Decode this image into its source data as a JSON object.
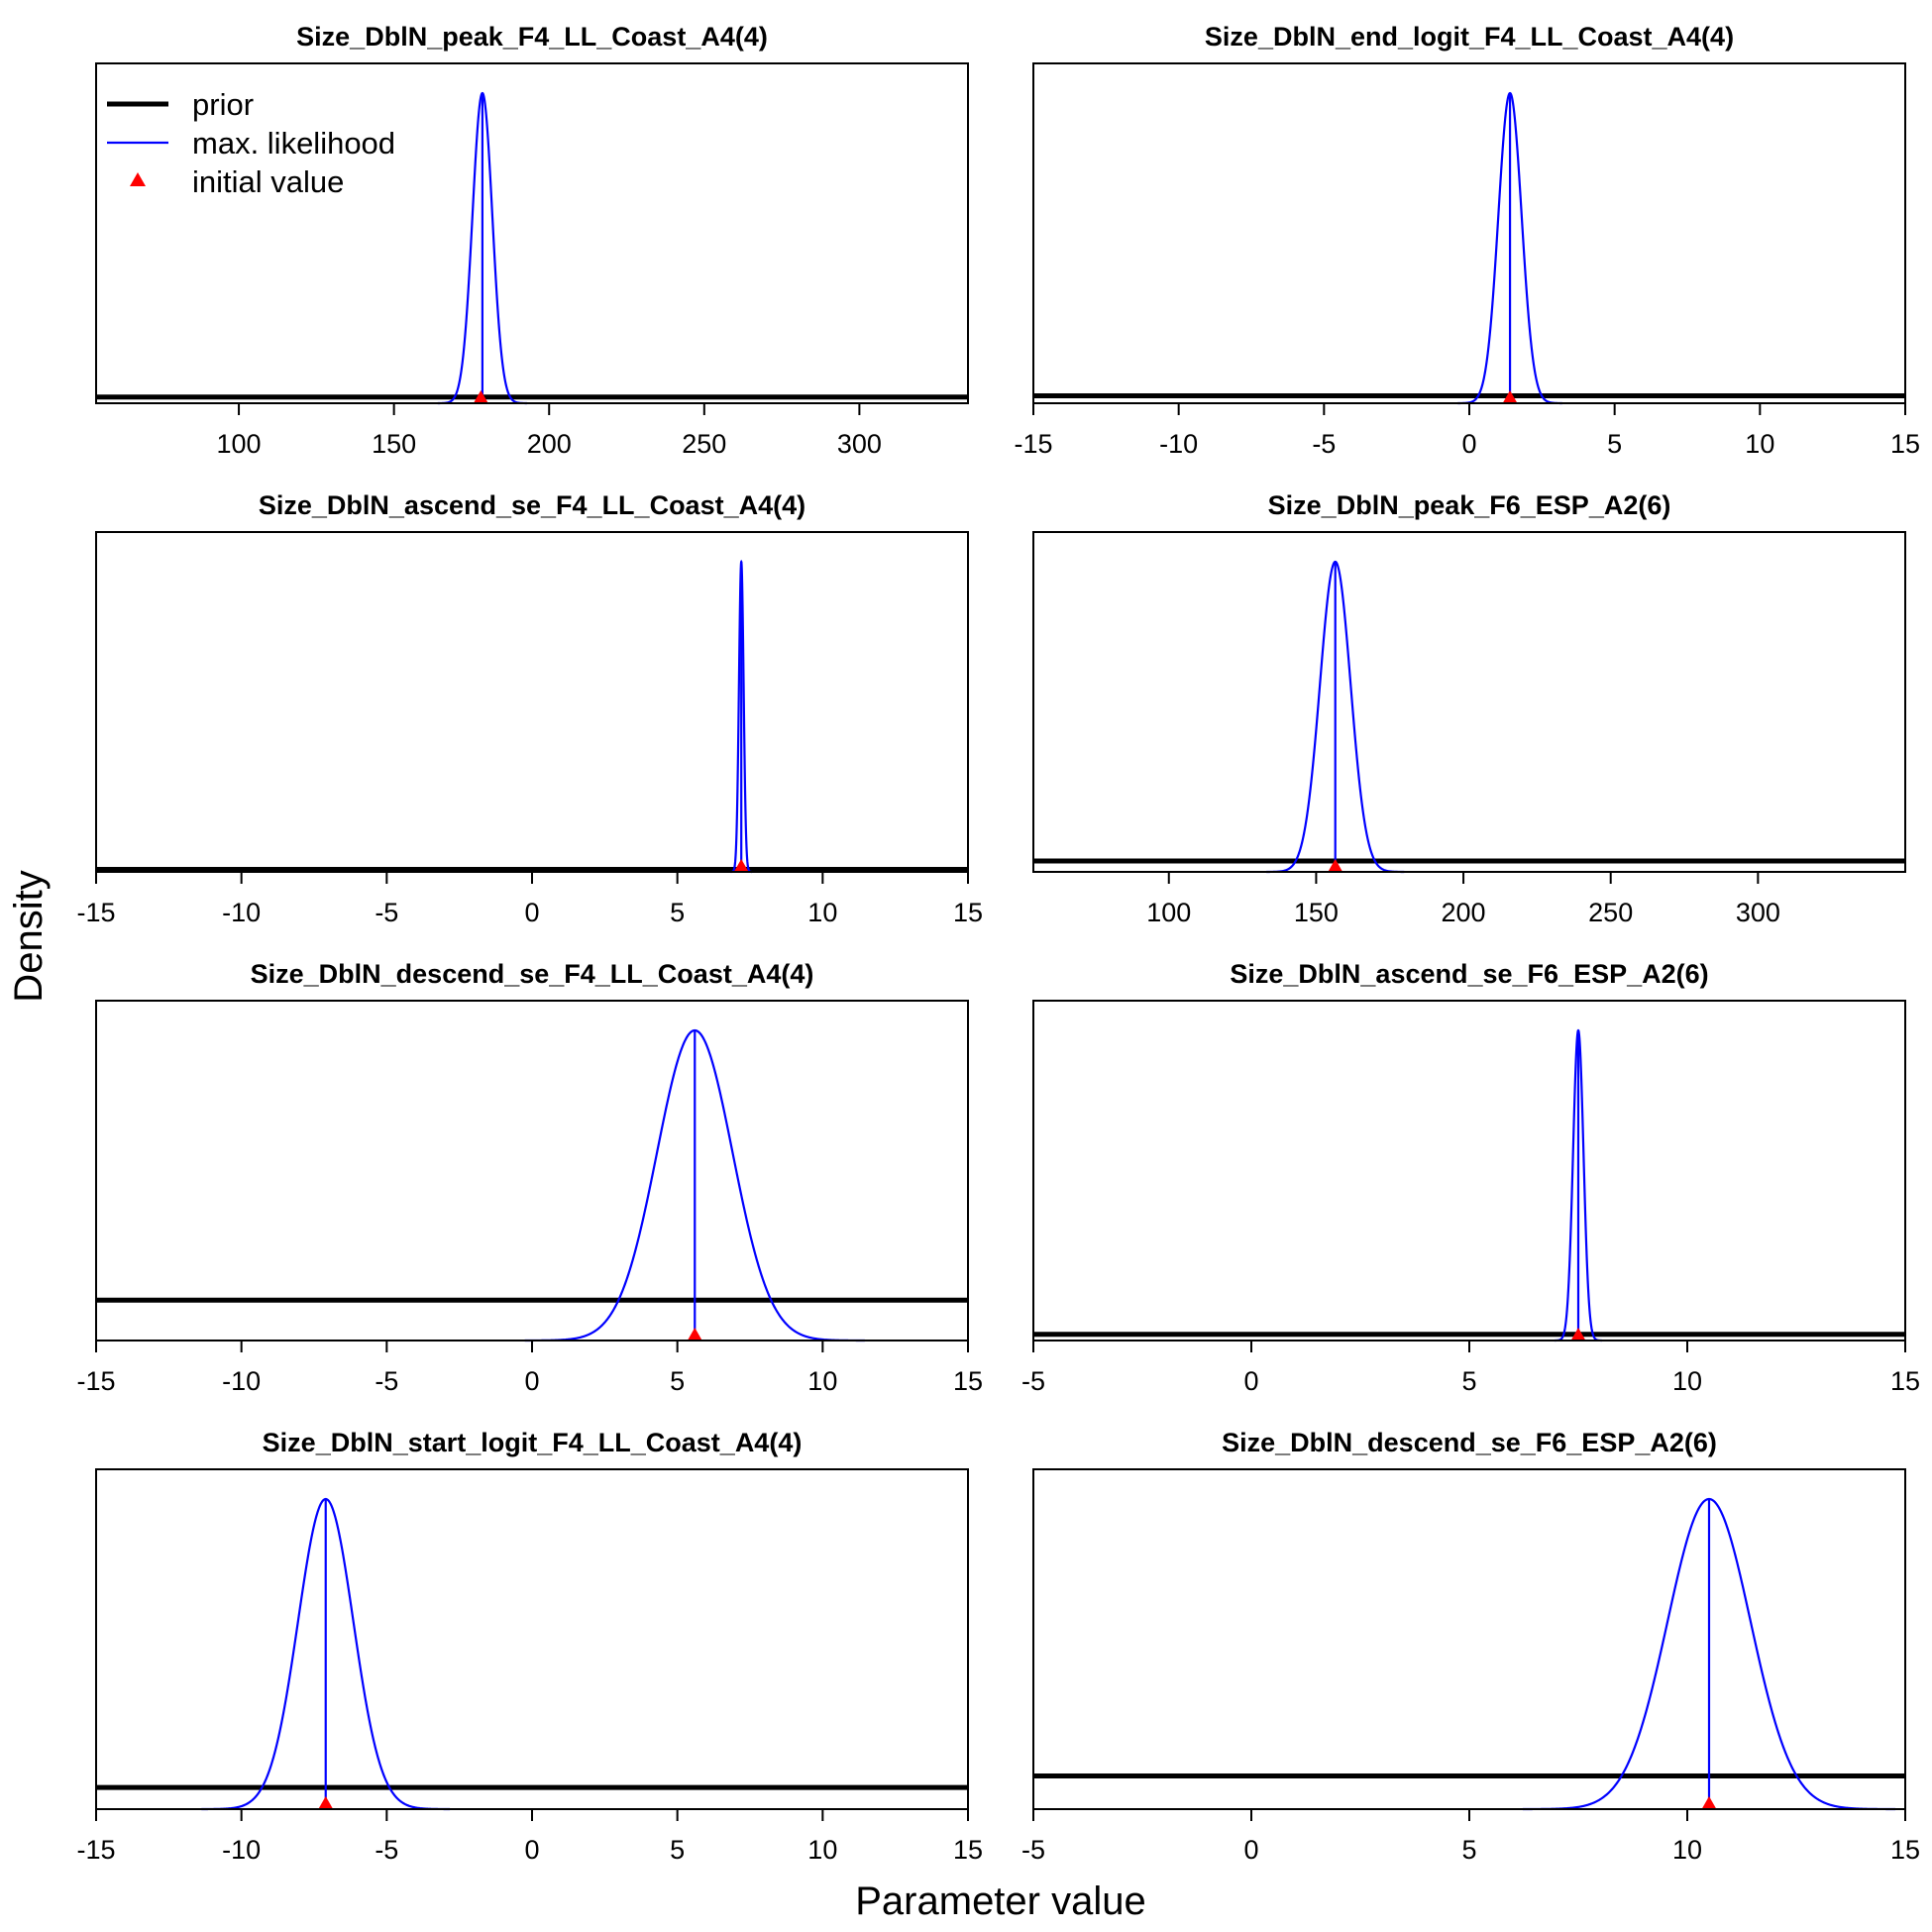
{
  "figure": {
    "xlabel": "Parameter value",
    "ylabel": "Density",
    "legend": {
      "placement": "top-left of first panel",
      "entries": [
        {
          "label": "prior",
          "style": "thick-line",
          "color": "#000000"
        },
        {
          "label": "max. likelihood",
          "style": "thin-line",
          "color": "#0000ff"
        },
        {
          "label": "initial value",
          "style": "triangle",
          "color": "#ff0000"
        }
      ]
    },
    "colors": {
      "prior": "#000000",
      "max_likelihood": "#0000ff",
      "initial_value": "#ff0000"
    }
  },
  "chart_data": [
    {
      "type": "line",
      "title": "Size_DblN_peak_F4_LL_Coast_A4(4)",
      "xlim": [
        54,
        335
      ],
      "xticks": [
        100,
        150,
        200,
        250,
        300
      ],
      "mle": 178.5,
      "sd": 3.2,
      "initial": 178,
      "prior_frac": 0.02
    },
    {
      "type": "line",
      "title": "Size_DblN_end_logit_F4_LL_Coast_A4(4)",
      "xlim": [
        -15,
        15
      ],
      "xticks": [
        -15,
        -10,
        -5,
        0,
        5,
        10,
        15
      ],
      "mle": 1.4,
      "sd": 0.4,
      "initial": 1.4,
      "prior_frac": 0.024
    },
    {
      "type": "line",
      "title": "Size_DblN_ascend_se_F4_LL_Coast_A4(4)",
      "xlim": [
        -15,
        15
      ],
      "xticks": [
        -15,
        -10,
        -5,
        0,
        5,
        10,
        15
      ],
      "mle": 7.2,
      "sd": 0.08,
      "initial": 7.2,
      "prior_frac": 0.008
    },
    {
      "type": "line",
      "title": "Size_DblN_peak_F6_ESP_A2(6)",
      "xlim": [
        54,
        350
      ],
      "xticks": [
        100,
        150,
        200,
        250,
        300
      ],
      "mle": 156.5,
      "sd": 5.2,
      "initial": 156.5,
      "prior_frac": 0.035
    },
    {
      "type": "line",
      "title": "Size_DblN_descend_se_F4_LL_Coast_A4(4)",
      "xlim": [
        -15,
        15
      ],
      "xticks": [
        -15,
        -10,
        -5,
        0,
        5,
        10,
        15
      ],
      "mle": 5.6,
      "sd": 1.3,
      "initial": 5.6,
      "prior_frac": 0.13
    },
    {
      "type": "line",
      "title": "Size_DblN_ascend_se_F6_ESP_A2(6)",
      "xlim": [
        -5,
        15
      ],
      "xticks": [
        -5,
        0,
        5,
        10,
        15
      ],
      "mle": 7.5,
      "sd": 0.12,
      "initial": 7.5,
      "prior_frac": 0.02
    },
    {
      "type": "line",
      "title": "Size_DblN_start_logit_F4_LL_Coast_A4(4)",
      "xlim": [
        -15,
        15
      ],
      "xticks": [
        -15,
        -10,
        -5,
        0,
        5,
        10,
        15
      ],
      "mle": -7.1,
      "sd": 0.95,
      "initial": -7.1,
      "prior_frac": 0.07
    },
    {
      "type": "line",
      "title": "Size_DblN_descend_se_F6_ESP_A2(6)",
      "xlim": [
        -5,
        15
      ],
      "xticks": [
        -5,
        0,
        5,
        10,
        15
      ],
      "mle": 10.5,
      "sd": 0.95,
      "initial": 10.5,
      "prior_frac": 0.107
    }
  ]
}
